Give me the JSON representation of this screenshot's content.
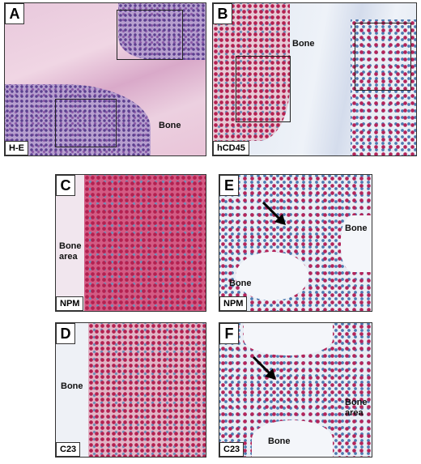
{
  "panels": [
    {
      "letter": "A",
      "stain": "H-E",
      "labels": [
        "Bone"
      ]
    },
    {
      "letter": "B",
      "stain": "hCD45",
      "labels": [
        "Bone"
      ]
    },
    {
      "letter": "C",
      "stain": "NPM",
      "labels": [
        "Bone area"
      ]
    },
    {
      "letter": "E",
      "stain": "NPM",
      "labels": [
        "Bone",
        "Bone"
      ]
    },
    {
      "letter": "D",
      "stain": "C23",
      "labels": [
        "Bone"
      ]
    },
    {
      "letter": "F",
      "stain": "C23",
      "labels": [
        "Bone area",
        "Bone"
      ]
    }
  ]
}
